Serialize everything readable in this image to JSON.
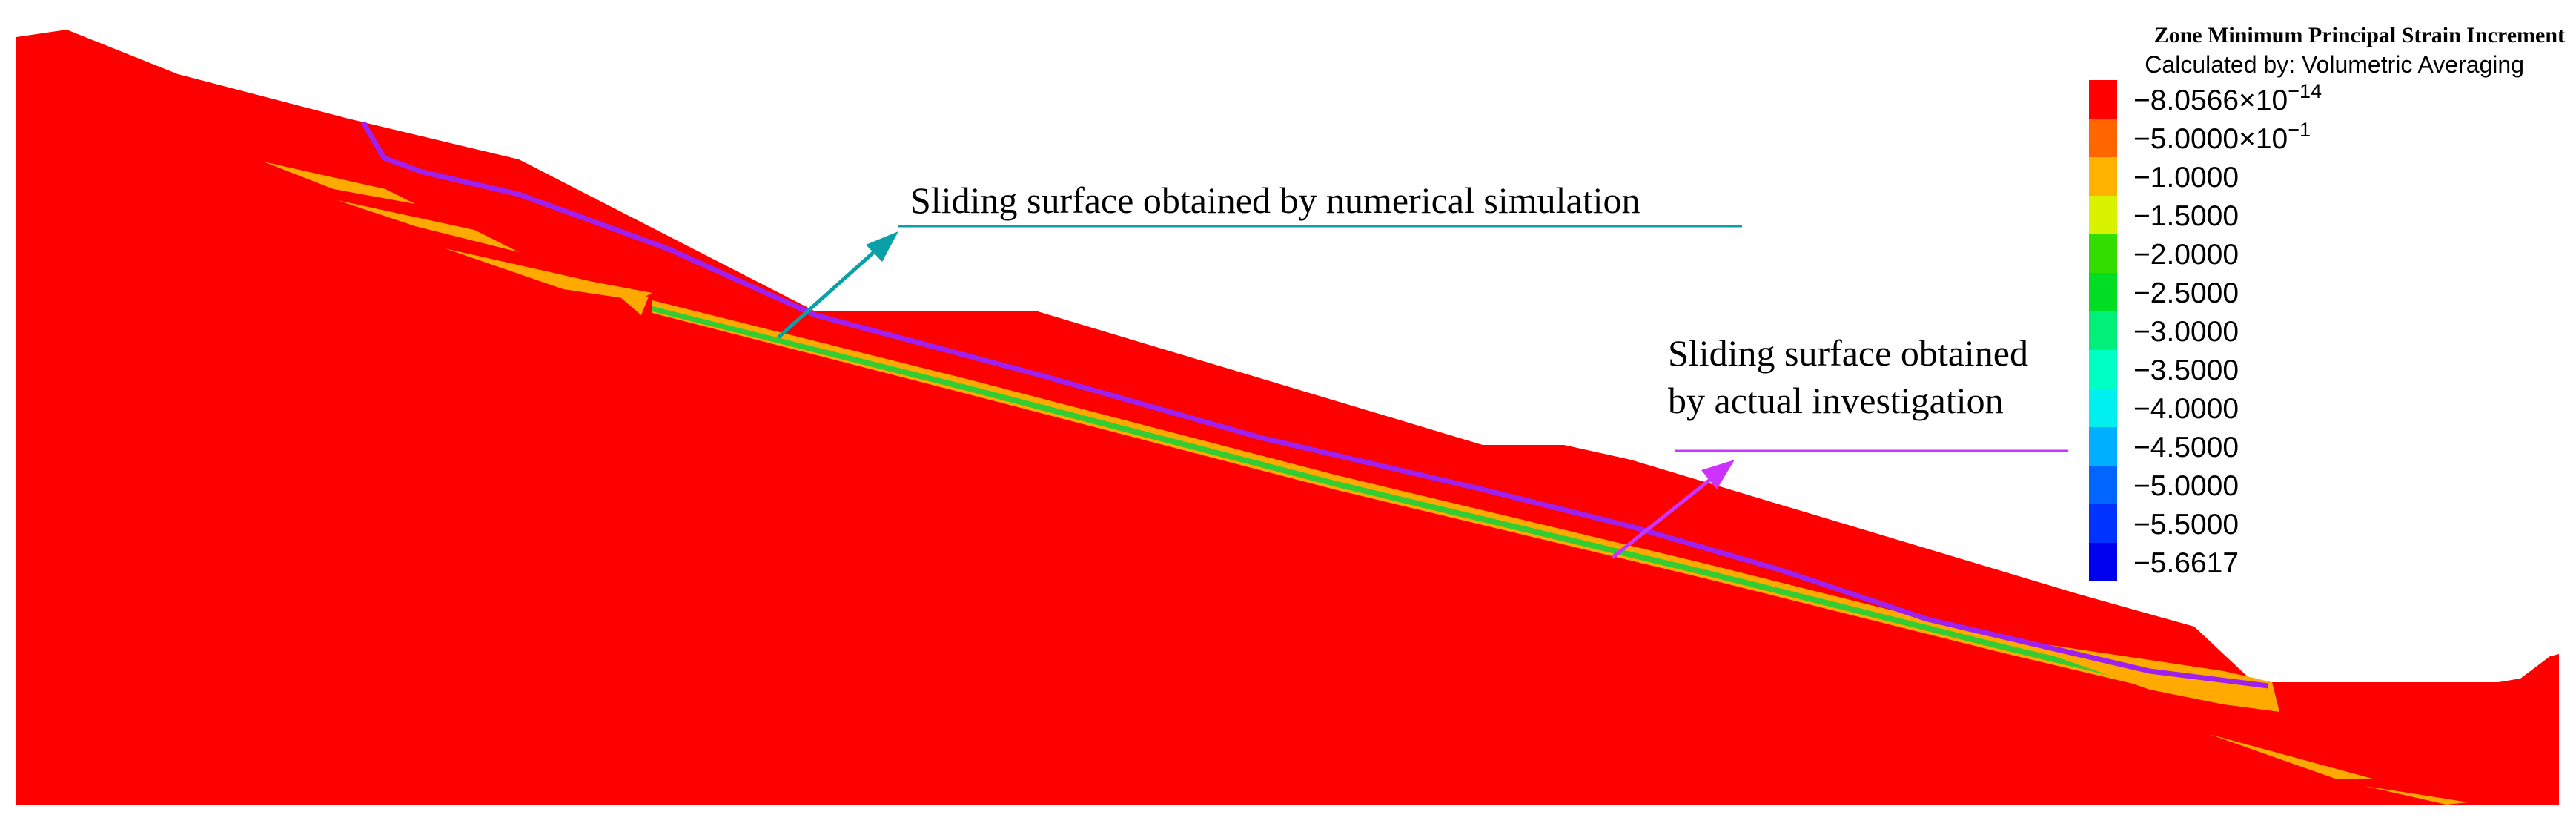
{
  "legend": {
    "title": "Zone Minimum Principal Strain Increment",
    "subtitle": "Calculated by: Volumetric Averaging",
    "entries": [
      {
        "mantissa": "−8.0566×10",
        "exponent": "−14",
        "color": "#ff0000"
      },
      {
        "mantissa": "−5.0000×10",
        "exponent": "−1",
        "color": "#ff6600"
      },
      {
        "mantissa": "−1.0000",
        "exponent": "",
        "color": "#ffb300"
      },
      {
        "mantissa": "−1.5000",
        "exponent": "",
        "color": "#d9f200"
      },
      {
        "mantissa": "−2.0000",
        "exponent": "",
        "color": "#33dd00"
      },
      {
        "mantissa": "−2.5000",
        "exponent": "",
        "color": "#00dd22"
      },
      {
        "mantissa": "−3.0000",
        "exponent": "",
        "color": "#00f07a"
      },
      {
        "mantissa": "−3.5000",
        "exponent": "",
        "color": "#00ffc4"
      },
      {
        "mantissa": "−4.0000",
        "exponent": "",
        "color": "#00f0f0"
      },
      {
        "mantissa": "−4.5000",
        "exponent": "",
        "color": "#00b0ff"
      },
      {
        "mantissa": "−5.0000",
        "exponent": "",
        "color": "#0066ff"
      },
      {
        "mantissa": "−5.5000",
        "exponent": "",
        "color": "#0033ff"
      },
      {
        "mantissa": "−5.6617",
        "exponent": "",
        "color": "#0000ee"
      }
    ]
  },
  "annotations": {
    "numerical": {
      "text": "Sliding surface obtained by numerical simulation",
      "color": "#0aa0a8"
    },
    "investigation": {
      "line1": "Sliding surface obtained",
      "line2": "by actual investigation",
      "color": "#cc33ff"
    }
  },
  "colors": {
    "slope_body": "#ff0000",
    "investigated_surface": "#a020f0",
    "strain_band_orange": "#ffaa00",
    "strain_band_green": "#33cc33"
  }
}
